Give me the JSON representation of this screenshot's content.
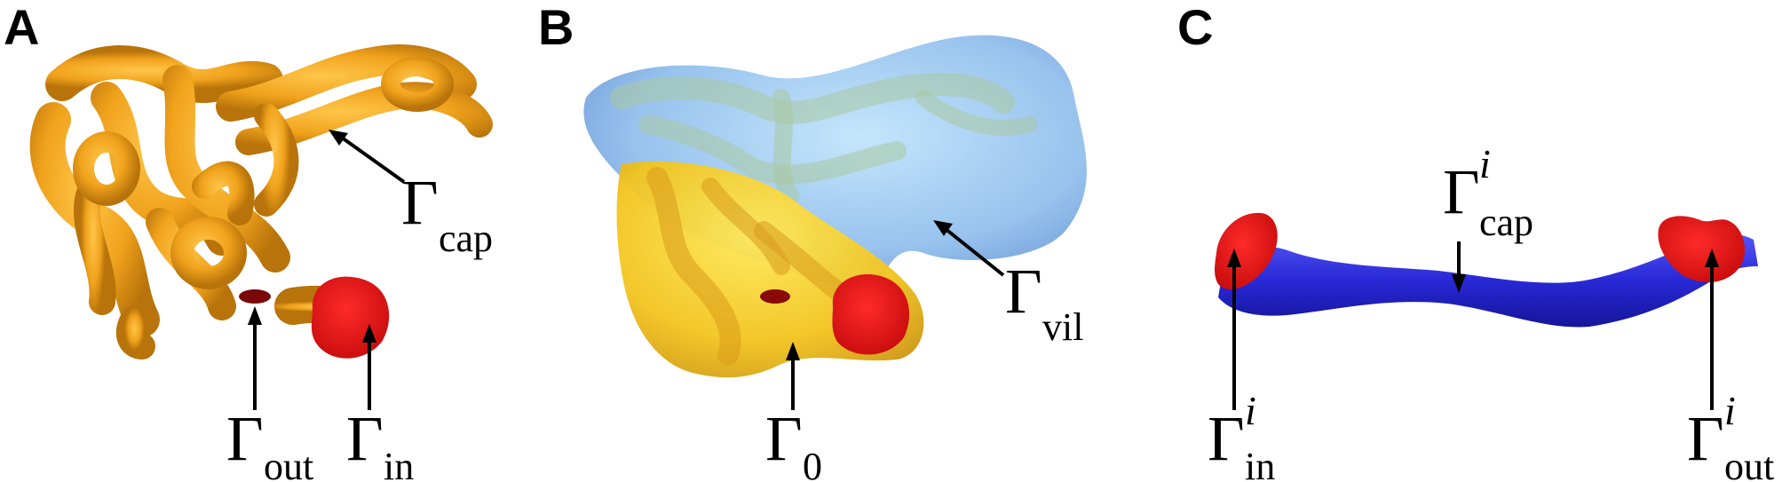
{
  "panels": {
    "a": {
      "letter": "A",
      "labels": {
        "cap": {
          "symbol": "Γ",
          "sub": "cap"
        },
        "out": {
          "symbol": "Γ",
          "sub": "out"
        },
        "in": {
          "symbol": "Γ",
          "sub": "in"
        }
      }
    },
    "b": {
      "letter": "B",
      "labels": {
        "vil": {
          "symbol": "Γ",
          "sub": "vil"
        },
        "zero": {
          "symbol": "Γ",
          "sub": "0"
        }
      }
    },
    "c": {
      "letter": "C",
      "labels": {
        "cap": {
          "symbol": "Γ",
          "sup": "i",
          "sub": "cap"
        },
        "in": {
          "symbol": "Γ",
          "sup": "i",
          "sub": "in"
        },
        "out": {
          "symbol": "Γ",
          "sup": "i",
          "sub": "out"
        }
      }
    }
  },
  "colors": {
    "orange_vessel": "#f0a21c",
    "orange_shadow": "#c27a0c",
    "red_boundary": "#e60f0f",
    "dark_red": "#7a0808",
    "blue_villus": "#7aa9e0",
    "yellow_region": "#f2cf2a",
    "blue_tube": "#2a2ad8"
  }
}
